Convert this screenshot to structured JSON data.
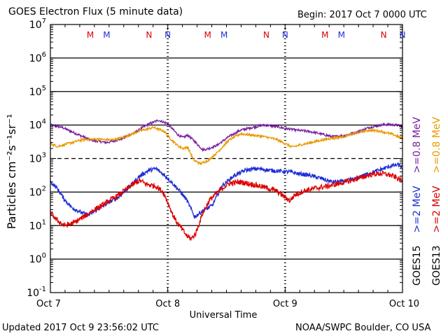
{
  "header": {
    "title": "GOES Electron Flux (5 minute data)",
    "begin": "Begin: 2017 Oct 7 0000 UTC"
  },
  "footer": {
    "updated": "Updated 2017 Oct  9 23:56:02 UTC",
    "credit": "NOAA/SWPC Boulder, CO USA"
  },
  "chart_data": {
    "type": "line",
    "ylabel": "Particles cm⁻²s⁻¹sr⁻¹",
    "xlabel": "Universal Time",
    "x_tick_labels": [
      "Oct 7",
      "Oct 8",
      "Oct 9",
      "Oct 10"
    ],
    "x_range_days": [
      0,
      3
    ],
    "y_scale": "log",
    "ylim": [
      0.1,
      10000000
    ],
    "y_tick_labels": [
      {
        "base": "10",
        "exp": "7"
      },
      {
        "base": "10",
        "exp": "6"
      },
      {
        "base": "10",
        "exp": "5"
      },
      {
        "base": "10",
        "exp": "4"
      },
      {
        "base": "10",
        "exp": "3"
      },
      {
        "base": "10",
        "exp": "2"
      },
      {
        "base": "10",
        "exp": "1"
      },
      {
        "base": "10",
        "exp": "0"
      },
      {
        "base": "10",
        "exp": "-1"
      }
    ],
    "grid_lines_at": [
      1,
      10,
      100,
      10000,
      100000,
      1000000
    ],
    "threshold_line": {
      "value": 1000,
      "style": "dashed"
    },
    "markers": [
      {
        "label": "M",
        "day": 0.34,
        "color": "#dd0000"
      },
      {
        "label": "M",
        "day": 0.48,
        "color": "#1e2fd6"
      },
      {
        "label": "N",
        "day": 0.84,
        "color": "#dd0000"
      },
      {
        "label": "N",
        "day": 1.0,
        "color": "#1e2fd6"
      },
      {
        "label": "M",
        "day": 1.34,
        "color": "#dd0000"
      },
      {
        "label": "M",
        "day": 1.48,
        "color": "#1e2fd6"
      },
      {
        "label": "N",
        "day": 1.84,
        "color": "#dd0000"
      },
      {
        "label": "N",
        "day": 2.0,
        "color": "#1e2fd6"
      },
      {
        "label": "M",
        "day": 2.34,
        "color": "#dd0000"
      },
      {
        "label": "M",
        "day": 2.48,
        "color": "#1e2fd6"
      },
      {
        "label": "N",
        "day": 2.84,
        "color": "#dd0000"
      },
      {
        "label": "N",
        "day": 3.0,
        "color": "#1e2fd6"
      }
    ],
    "legend": {
      "placement": "right",
      "groups": [
        {
          "satellite": "GOES15",
          "items": [
            {
              "label": ">=0.8  MeV",
              "color": "#7a1fa2"
            },
            {
              "label": ">=2  MeV",
              "color": "#1e2fd6"
            }
          ]
        },
        {
          "satellite": "GOES13",
          "items": [
            {
              "label": ">=0.8  MeV",
              "color": "#e89a00"
            },
            {
              "label": ">=2  MeV",
              "color": "#dd0000"
            }
          ]
        }
      ]
    },
    "series": [
      {
        "color": "#7a1fa2",
        "noise": 0.035,
        "values": [
          [
            0.0,
            10000
          ],
          [
            0.1,
            8500
          ],
          [
            0.22,
            5500
          ],
          [
            0.35,
            3500
          ],
          [
            0.48,
            3000
          ],
          [
            0.6,
            3800
          ],
          [
            0.72,
            6000
          ],
          [
            0.82,
            10000
          ],
          [
            0.92,
            14000
          ],
          [
            1.0,
            11000
          ],
          [
            1.05,
            7000
          ],
          [
            1.09,
            5000
          ],
          [
            1.13,
            4200
          ],
          [
            1.17,
            5000
          ],
          [
            1.22,
            3500
          ],
          [
            1.3,
            1800
          ],
          [
            1.35,
            2000
          ],
          [
            1.42,
            2500
          ],
          [
            1.52,
            4500
          ],
          [
            1.62,
            7000
          ],
          [
            1.72,
            8500
          ],
          [
            1.82,
            10000
          ],
          [
            1.92,
            9000
          ],
          [
            2.0,
            8000
          ],
          [
            2.1,
            7000
          ],
          [
            2.2,
            6500
          ],
          [
            2.3,
            5500
          ],
          [
            2.4,
            4500
          ],
          [
            2.5,
            4800
          ],
          [
            2.6,
            6000
          ],
          [
            2.72,
            8500
          ],
          [
            2.85,
            10500
          ],
          [
            2.95,
            10000
          ],
          [
            3.0,
            9000
          ]
        ]
      },
      {
        "color": "#e89a00",
        "noise": 0.035,
        "values": [
          [
            0.0,
            2800
          ],
          [
            0.06,
            2300
          ],
          [
            0.15,
            2800
          ],
          [
            0.28,
            3700
          ],
          [
            0.4,
            3800
          ],
          [
            0.52,
            3600
          ],
          [
            0.62,
            4200
          ],
          [
            0.75,
            6500
          ],
          [
            0.88,
            8500
          ],
          [
            0.97,
            6500
          ],
          [
            1.02,
            4000
          ],
          [
            1.08,
            2500
          ],
          [
            1.13,
            2000
          ],
          [
            1.17,
            2200
          ],
          [
            1.22,
            900
          ],
          [
            1.28,
            700
          ],
          [
            1.35,
            900
          ],
          [
            1.42,
            1500
          ],
          [
            1.52,
            3500
          ],
          [
            1.62,
            5500
          ],
          [
            1.72,
            5000
          ],
          [
            1.82,
            4500
          ],
          [
            1.92,
            3800
          ],
          [
            2.0,
            2800
          ],
          [
            2.06,
            2200
          ],
          [
            2.12,
            2500
          ],
          [
            2.22,
            3000
          ],
          [
            2.35,
            3800
          ],
          [
            2.5,
            4500
          ],
          [
            2.62,
            6000
          ],
          [
            2.72,
            7000
          ],
          [
            2.82,
            6500
          ],
          [
            2.92,
            5200
          ],
          [
            3.0,
            4000
          ]
        ]
      },
      {
        "color": "#1e2fd6",
        "noise": 0.06,
        "values": [
          [
            0.0,
            200
          ],
          [
            0.05,
            140
          ],
          [
            0.12,
            60
          ],
          [
            0.18,
            35
          ],
          [
            0.26,
            25
          ],
          [
            0.32,
            20
          ],
          [
            0.4,
            30
          ],
          [
            0.5,
            50
          ],
          [
            0.58,
            70
          ],
          [
            0.68,
            150
          ],
          [
            0.76,
            300
          ],
          [
            0.84,
            450
          ],
          [
            0.9,
            500
          ],
          [
            0.98,
            300
          ],
          [
            1.03,
            200
          ],
          [
            1.08,
            130
          ],
          [
            1.12,
            90
          ],
          [
            1.16,
            60
          ],
          [
            1.2,
            30
          ],
          [
            1.23,
            18
          ],
          [
            1.28,
            25
          ],
          [
            1.32,
            30
          ],
          [
            1.38,
            40
          ],
          [
            1.46,
            150
          ],
          [
            1.56,
            300
          ],
          [
            1.66,
            450
          ],
          [
            1.76,
            500
          ],
          [
            1.86,
            450
          ],
          [
            1.96,
            420
          ],
          [
            2.04,
            400
          ],
          [
            2.12,
            350
          ],
          [
            2.2,
            320
          ],
          [
            2.3,
            260
          ],
          [
            2.4,
            200
          ],
          [
            2.5,
            210
          ],
          [
            2.6,
            250
          ],
          [
            2.7,
            350
          ],
          [
            2.8,
            450
          ],
          [
            2.9,
            600
          ],
          [
            2.96,
            650
          ],
          [
            3.0,
            550
          ]
        ]
      },
      {
        "color": "#dd0000",
        "noise": 0.08,
        "values": [
          [
            0.0,
            25
          ],
          [
            0.05,
            15
          ],
          [
            0.12,
            10
          ],
          [
            0.2,
            12
          ],
          [
            0.28,
            18
          ],
          [
            0.36,
            28
          ],
          [
            0.44,
            40
          ],
          [
            0.52,
            60
          ],
          [
            0.6,
            90
          ],
          [
            0.68,
            150
          ],
          [
            0.76,
            220
          ],
          [
            0.82,
            170
          ],
          [
            0.9,
            150
          ],
          [
            0.96,
            100
          ],
          [
            1.0,
            50
          ],
          [
            1.04,
            22
          ],
          [
            1.08,
            12
          ],
          [
            1.12,
            8
          ],
          [
            1.16,
            5
          ],
          [
            1.2,
            4
          ],
          [
            1.24,
            6
          ],
          [
            1.3,
            25
          ],
          [
            1.36,
            60
          ],
          [
            1.44,
            110
          ],
          [
            1.52,
            180
          ],
          [
            1.62,
            200
          ],
          [
            1.72,
            170
          ],
          [
            1.82,
            140
          ],
          [
            1.92,
            110
          ],
          [
            2.0,
            70
          ],
          [
            2.04,
            55
          ],
          [
            2.08,
            80
          ],
          [
            2.16,
            110
          ],
          [
            2.26,
            130
          ],
          [
            2.36,
            150
          ],
          [
            2.46,
            180
          ],
          [
            2.56,
            220
          ],
          [
            2.66,
            280
          ],
          [
            2.74,
            340
          ],
          [
            2.82,
            360
          ],
          [
            2.88,
            330
          ],
          [
            2.94,
            280
          ],
          [
            3.0,
            210
          ]
        ]
      }
    ]
  }
}
